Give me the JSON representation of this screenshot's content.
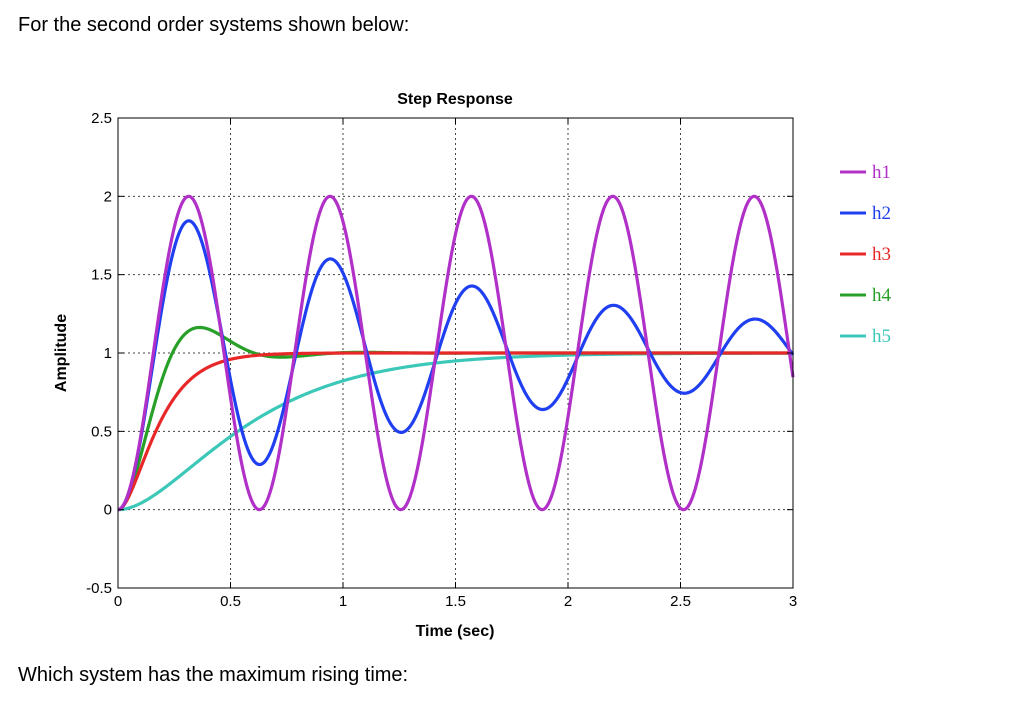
{
  "question": {
    "top": "For the second order systems shown below:",
    "bottom": "Which system has the maximum rising time:"
  },
  "chart_data": {
    "type": "line",
    "title": "Step Response",
    "xlabel": "Time (sec)",
    "ylabel": "Amplitude",
    "xlim": [
      0,
      3
    ],
    "ylim": [
      -0.5,
      2.5
    ],
    "xticks": [
      0,
      0.5,
      1,
      1.5,
      2,
      2.5,
      3
    ],
    "xtick_labels": [
      "0",
      "0.5",
      "1",
      "1.5",
      "2",
      "2.5",
      "3"
    ],
    "yticks": [
      -0.5,
      0,
      0.5,
      1,
      1.5,
      2,
      2.5
    ],
    "ytick_labels": [
      "-0.5",
      "0",
      "0.5",
      "1",
      "1.5",
      "2",
      "2.5"
    ],
    "grid": true,
    "legend_position": "outside-right",
    "series": [
      {
        "name": "h1",
        "color": "#b030c8",
        "model": {
          "wn": 10.0,
          "zeta": 0.0
        }
      },
      {
        "name": "h2",
        "color": "#1f3ff0",
        "model": {
          "wn": 10.0,
          "zeta": 0.054
        }
      },
      {
        "name": "h3",
        "color": "#e82828",
        "model": {
          "wn": 10.0,
          "zeta": 1.0
        }
      },
      {
        "name": "h4",
        "color": "#28a028",
        "model": {
          "wn": 10.0,
          "zeta": 0.5
        }
      },
      {
        "name": "h5",
        "color": "#3cc8b8",
        "model": {
          "wn": 3.15,
          "zeta": 1.0
        }
      }
    ],
    "sample_points": {
      "h1": {
        "x": [
          0,
          0.31,
          0.63,
          0.94,
          1.26
        ],
        "y": [
          0,
          2.0,
          0,
          2.0,
          0
        ]
      },
      "h2": {
        "x": [
          0,
          0.31,
          0.63,
          0.94,
          1.26,
          1.57,
          1.89,
          2.2,
          2.51,
          2.83
        ],
        "y": [
          0,
          1.84,
          0.29,
          1.62,
          0.48,
          1.46,
          0.62,
          1.33,
          0.73,
          1.24
        ]
      },
      "h3": {
        "x": [
          0,
          0.1,
          0.2,
          0.3,
          0.5,
          1.0,
          2.0
        ],
        "y": [
          0,
          0.26,
          0.59,
          0.8,
          0.96,
          1.0,
          1.0
        ]
      },
      "h4": {
        "x": [
          0,
          0.1,
          0.2,
          0.36,
          0.5,
          0.72,
          1.0
        ],
        "y": [
          0,
          0.35,
          0.82,
          1.16,
          1.09,
          0.99,
          1.0
        ]
      },
      "h5": {
        "x": [
          0,
          0.25,
          0.5,
          0.75,
          1.0,
          1.5,
          2.0,
          3.0
        ],
        "y": [
          0,
          0.19,
          0.47,
          0.68,
          0.82,
          0.95,
          0.99,
          1.0
        ]
      }
    }
  }
}
